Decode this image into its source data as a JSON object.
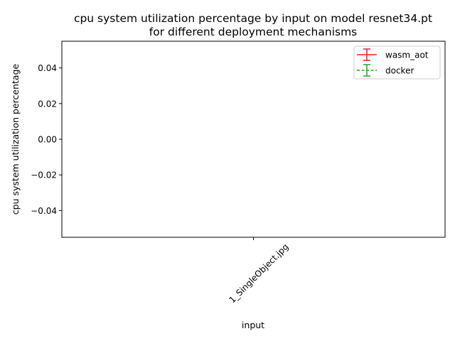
{
  "chart_data": {
    "type": "line",
    "title_lines": [
      "cpu system utilization percentage by input on model resnet34.pt",
      "for different deployment mechanisms"
    ],
    "xlabel": "input",
    "ylabel": "cpu system utilization percentage",
    "categories": [
      "1_SingleObject.jpg"
    ],
    "ylim": [
      -0.055,
      0.055
    ],
    "yticks": [
      0.04,
      0.02,
      0.0,
      -0.02,
      -0.04
    ],
    "ytick_labels": [
      "0.04",
      "0.02",
      "0.00",
      "−0.02",
      "−0.04"
    ],
    "grid": false,
    "legend_position": "top-right",
    "series": [
      {
        "name": "wasm_aot",
        "color": "#d62728",
        "line_style": "solid",
        "values": [
          null
        ]
      },
      {
        "name": "docker",
        "color": "#2ca02c",
        "line_style": "dashed",
        "values": [
          null
        ]
      }
    ]
  }
}
